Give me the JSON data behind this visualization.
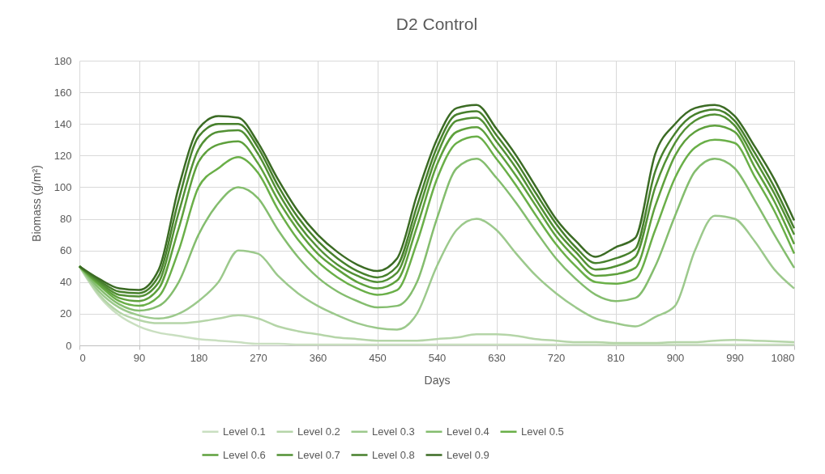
{
  "chart_data": {
    "type": "line",
    "title": "D2 Control",
    "xlabel": "Days",
    "ylabel": "Biomass (g/m²)",
    "x": [
      0,
      30,
      60,
      90,
      120,
      150,
      180,
      210,
      240,
      270,
      300,
      330,
      360,
      390,
      420,
      450,
      480,
      510,
      540,
      570,
      600,
      630,
      660,
      690,
      720,
      750,
      780,
      810,
      840,
      870,
      900,
      930,
      960,
      990,
      1020,
      1050,
      1080
    ],
    "xlim": [
      0,
      1080
    ],
    "xticks": [
      0,
      90,
      180,
      270,
      360,
      450,
      540,
      630,
      720,
      810,
      900,
      990,
      1080
    ],
    "ylim": [
      0,
      180
    ],
    "yticks": [
      0,
      20,
      40,
      60,
      80,
      100,
      120,
      140,
      160,
      180
    ],
    "grid": true,
    "legend": "bottom",
    "series": [
      {
        "name": "Level 0.1",
        "color": "#c9dfc0",
        "values": [
          50,
          31,
          19,
          12,
          8,
          6,
          4,
          3,
          2,
          1,
          1,
          0.5,
          0.5,
          0.5,
          0.5,
          0.5,
          0.5,
          0.5,
          0.5,
          0.5,
          0.5,
          0.5,
          0.5,
          0.5,
          0.5,
          0.5,
          0.5,
          0.5,
          0.5,
          0.5,
          0.5,
          0.5,
          0.5,
          0.5,
          0.5,
          0.5,
          0.5
        ]
      },
      {
        "name": "Level 0.2",
        "color": "#b5d5a8",
        "values": [
          50,
          32,
          21,
          16,
          14,
          14,
          15,
          17,
          19,
          17,
          12,
          9,
          7,
          5,
          4,
          3,
          3,
          3,
          4,
          5,
          7,
          7,
          6,
          4,
          3,
          2,
          2,
          1.5,
          1.5,
          1.5,
          2,
          2,
          3,
          3.5,
          3,
          2.5,
          2
        ]
      },
      {
        "name": "Level 0.3",
        "color": "#9cc98c",
        "values": [
          50,
          34,
          24,
          19,
          17,
          20,
          28,
          40,
          60,
          58,
          44,
          33,
          25,
          19,
          14,
          11,
          10,
          20,
          50,
          73,
          80,
          73,
          58,
          44,
          33,
          24,
          17,
          14,
          12,
          18,
          25,
          60,
          82,
          80,
          66,
          48,
          36
        ]
      },
      {
        "name": "Level 0.4",
        "color": "#84bd6e",
        "values": [
          50,
          36,
          26,
          22,
          25,
          40,
          70,
          90,
          100,
          93,
          73,
          56,
          43,
          34,
          28,
          24,
          25,
          40,
          80,
          112,
          118,
          106,
          90,
          72,
          55,
          42,
          32,
          28,
          30,
          50,
          82,
          110,
          118,
          112,
          92,
          70,
          49
        ]
      },
      {
        "name": "Level 0.5",
        "color": "#6aaf48",
        "values": [
          50,
          38,
          28,
          25,
          31,
          60,
          100,
          112,
          119,
          109,
          86,
          67,
          53,
          43,
          36,
          32,
          35,
          65,
          105,
          128,
          132,
          118,
          101,
          82,
          64,
          50,
          40,
          39,
          42,
          73,
          106,
          125,
          130,
          128,
          107,
          85,
          58
        ]
      },
      {
        "name": "Level 0.6",
        "color": "#5ea03c",
        "values": [
          50,
          39,
          30,
          28,
          36,
          74,
          116,
          127,
          129,
          115,
          92,
          73,
          58,
          48,
          40,
          36,
          41,
          75,
          114,
          135,
          138,
          124,
          107,
          88,
          69,
          55,
          44,
          45,
          49,
          88,
          120,
          135,
          139,
          135,
          113,
          91,
          64
        ]
      },
      {
        "name": "Level 0.7",
        "color": "#529034",
        "values": [
          50,
          40,
          32,
          31,
          40,
          84,
          124,
          135,
          136,
          121,
          97,
          77,
          62,
          51,
          44,
          40,
          46,
          82,
          120,
          142,
          144,
          129,
          112,
          92,
          73,
          59,
          48,
          50,
          56,
          100,
          128,
          142,
          146,
          139,
          118,
          96,
          70
        ]
      },
      {
        "name": "Level 0.8",
        "color": "#47802c",
        "values": [
          50,
          41,
          34,
          33,
          44,
          92,
          132,
          140,
          140,
          125,
          101,
          81,
          66,
          55,
          47,
          43,
          50,
          88,
          125,
          146,
          148,
          133,
          116,
          96,
          77,
          62,
          52,
          55,
          61,
          110,
          134,
          146,
          149,
          142,
          122,
          100,
          74
        ]
      },
      {
        "name": "Level 0.9",
        "color": "#3b6b24",
        "values": [
          50,
          42,
          36,
          35,
          48,
          100,
          137,
          145,
          144,
          128,
          105,
          85,
          70,
          59,
          51,
          47,
          55,
          95,
          130,
          150,
          152,
          137,
          120,
          100,
          80,
          66,
          56,
          62,
          68,
          121,
          140,
          150,
          152,
          145,
          126,
          105,
          79
        ]
      }
    ]
  }
}
